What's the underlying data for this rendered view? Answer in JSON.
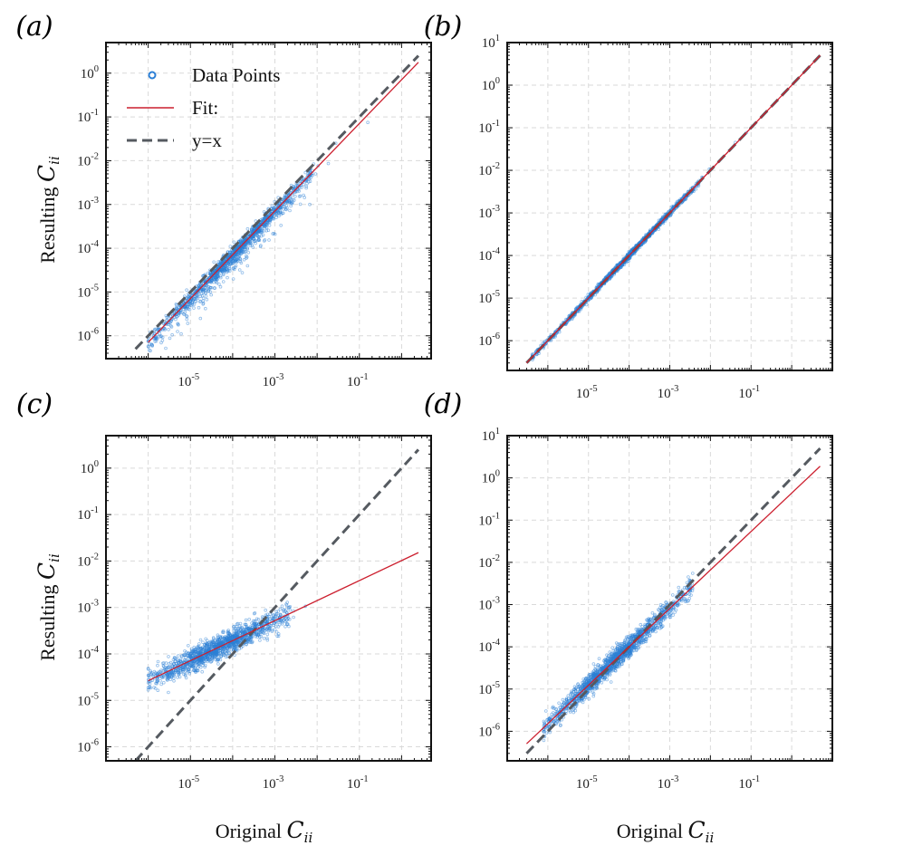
{
  "chart_data": [
    {
      "panel": "(a)",
      "type": "scatter",
      "xscale": "log",
      "yscale": "log",
      "xlim": [
        1e-07,
        5
      ],
      "ylim": [
        3e-07,
        5
      ],
      "xlabel": "",
      "ylabel_text": "Resulting ",
      "ylabel_symbol": "C",
      "ylabel_sub": "ii",
      "xticks": [
        "10^-5",
        "10^-3",
        "10^-1"
      ],
      "yticks": [
        "10^-6",
        "10^-5",
        "10^-4",
        "10^-3",
        "10^-2",
        "10^-1",
        "10^0"
      ],
      "legend": {
        "position": "top-left",
        "entries": [
          {
            "label": "Data Points",
            "kind": "marker",
            "color": "#2b7fd6"
          },
          {
            "label": "Fit:",
            "kind": "line",
            "color": "#cc1f2e"
          },
          {
            "label": "y=x",
            "kind": "dashed",
            "color": "#555a60"
          }
        ]
      },
      "fit": {
        "slope": 1.0,
        "intercept_log10": -0.15,
        "x_range": [
          1e-06,
          2.5
        ]
      },
      "identity": {
        "x_range": [
          5e-07,
          2.5
        ]
      },
      "scatter": {
        "n": 1400,
        "log10_x_range": [
          -6,
          -0.8
        ],
        "log10_x_center": -3.9,
        "log10_x_spread": 0.95,
        "noise": 0.09
      }
    },
    {
      "panel": "(b)",
      "type": "scatter",
      "xscale": "log",
      "yscale": "log",
      "xlim": [
        1e-07,
        10
      ],
      "ylim": [
        2e-07,
        10
      ],
      "xlabel": "",
      "ylabel_text": "",
      "ylabel_symbol": "",
      "ylabel_sub": "",
      "xticks": [
        "10^-5",
        "10^-3",
        "10^-1"
      ],
      "yticks": [
        "10^-6",
        "10^-5",
        "10^-4",
        "10^-3",
        "10^-2",
        "10^-1",
        "10^0",
        "10^1"
      ],
      "fit": {
        "slope": 1.0,
        "intercept_log10": 0.0,
        "x_range": [
          3e-07,
          5
        ]
      },
      "identity": {
        "x_range": [
          3e-07,
          5
        ]
      },
      "scatter": {
        "n": 1400,
        "log10_x_range": [
          -6.4,
          -0.9
        ],
        "log10_x_center": -4.0,
        "log10_x_spread": 0.95,
        "noise": 0.035
      }
    },
    {
      "panel": "(c)",
      "type": "scatter",
      "xscale": "log",
      "yscale": "log",
      "xlim": [
        1e-07,
        5
      ],
      "ylim": [
        5e-07,
        5
      ],
      "xlabel_text": "Original ",
      "xlabel_symbol": "C",
      "xlabel_sub": "ii",
      "ylabel_text": "Resulting ",
      "ylabel_symbol": "C",
      "ylabel_sub": "ii",
      "xticks": [
        "10^-5",
        "10^-3",
        "10^-1"
      ],
      "yticks": [
        "10^-6",
        "10^-5",
        "10^-4",
        "10^-3",
        "10^-2",
        "10^-1",
        "10^0"
      ],
      "fit": {
        "slope": 0.431,
        "intercept_log10": -1.99,
        "x_range": [
          1e-06,
          2.5
        ]
      },
      "identity": {
        "x_range": [
          5e-07,
          2.5
        ]
      },
      "scatter": {
        "n": 1400,
        "log10_x_range": [
          -6,
          -1.5
        ],
        "log10_x_center": -4.3,
        "log10_x_spread": 0.85,
        "noise": 0.13
      }
    },
    {
      "panel": "(d)",
      "type": "scatter",
      "xscale": "log",
      "yscale": "log",
      "xlim": [
        1e-07,
        10
      ],
      "ylim": [
        2e-07,
        10
      ],
      "xlabel_text": "Original ",
      "xlabel_symbol": "C",
      "xlabel_sub": "ii",
      "ylabel_text": "",
      "ylabel_symbol": "",
      "ylabel_sub": "",
      "xticks": [
        "10^-5",
        "10^-3",
        "10^-1"
      ],
      "yticks": [
        "10^-6",
        "10^-5",
        "10^-4",
        "10^-3",
        "10^-2",
        "10^-1",
        "10^0",
        "10^1"
      ],
      "fit": {
        "slope": 0.91,
        "intercept_log10": -0.36,
        "x_range": [
          3e-07,
          5
        ]
      },
      "identity": {
        "x_range": [
          3e-07,
          5
        ]
      },
      "scatter": {
        "n": 1500,
        "log10_x_range": [
          -6.1,
          -1.2
        ],
        "log10_x_center": -4.4,
        "log10_x_spread": 0.9,
        "noise": 0.12
      }
    }
  ]
}
